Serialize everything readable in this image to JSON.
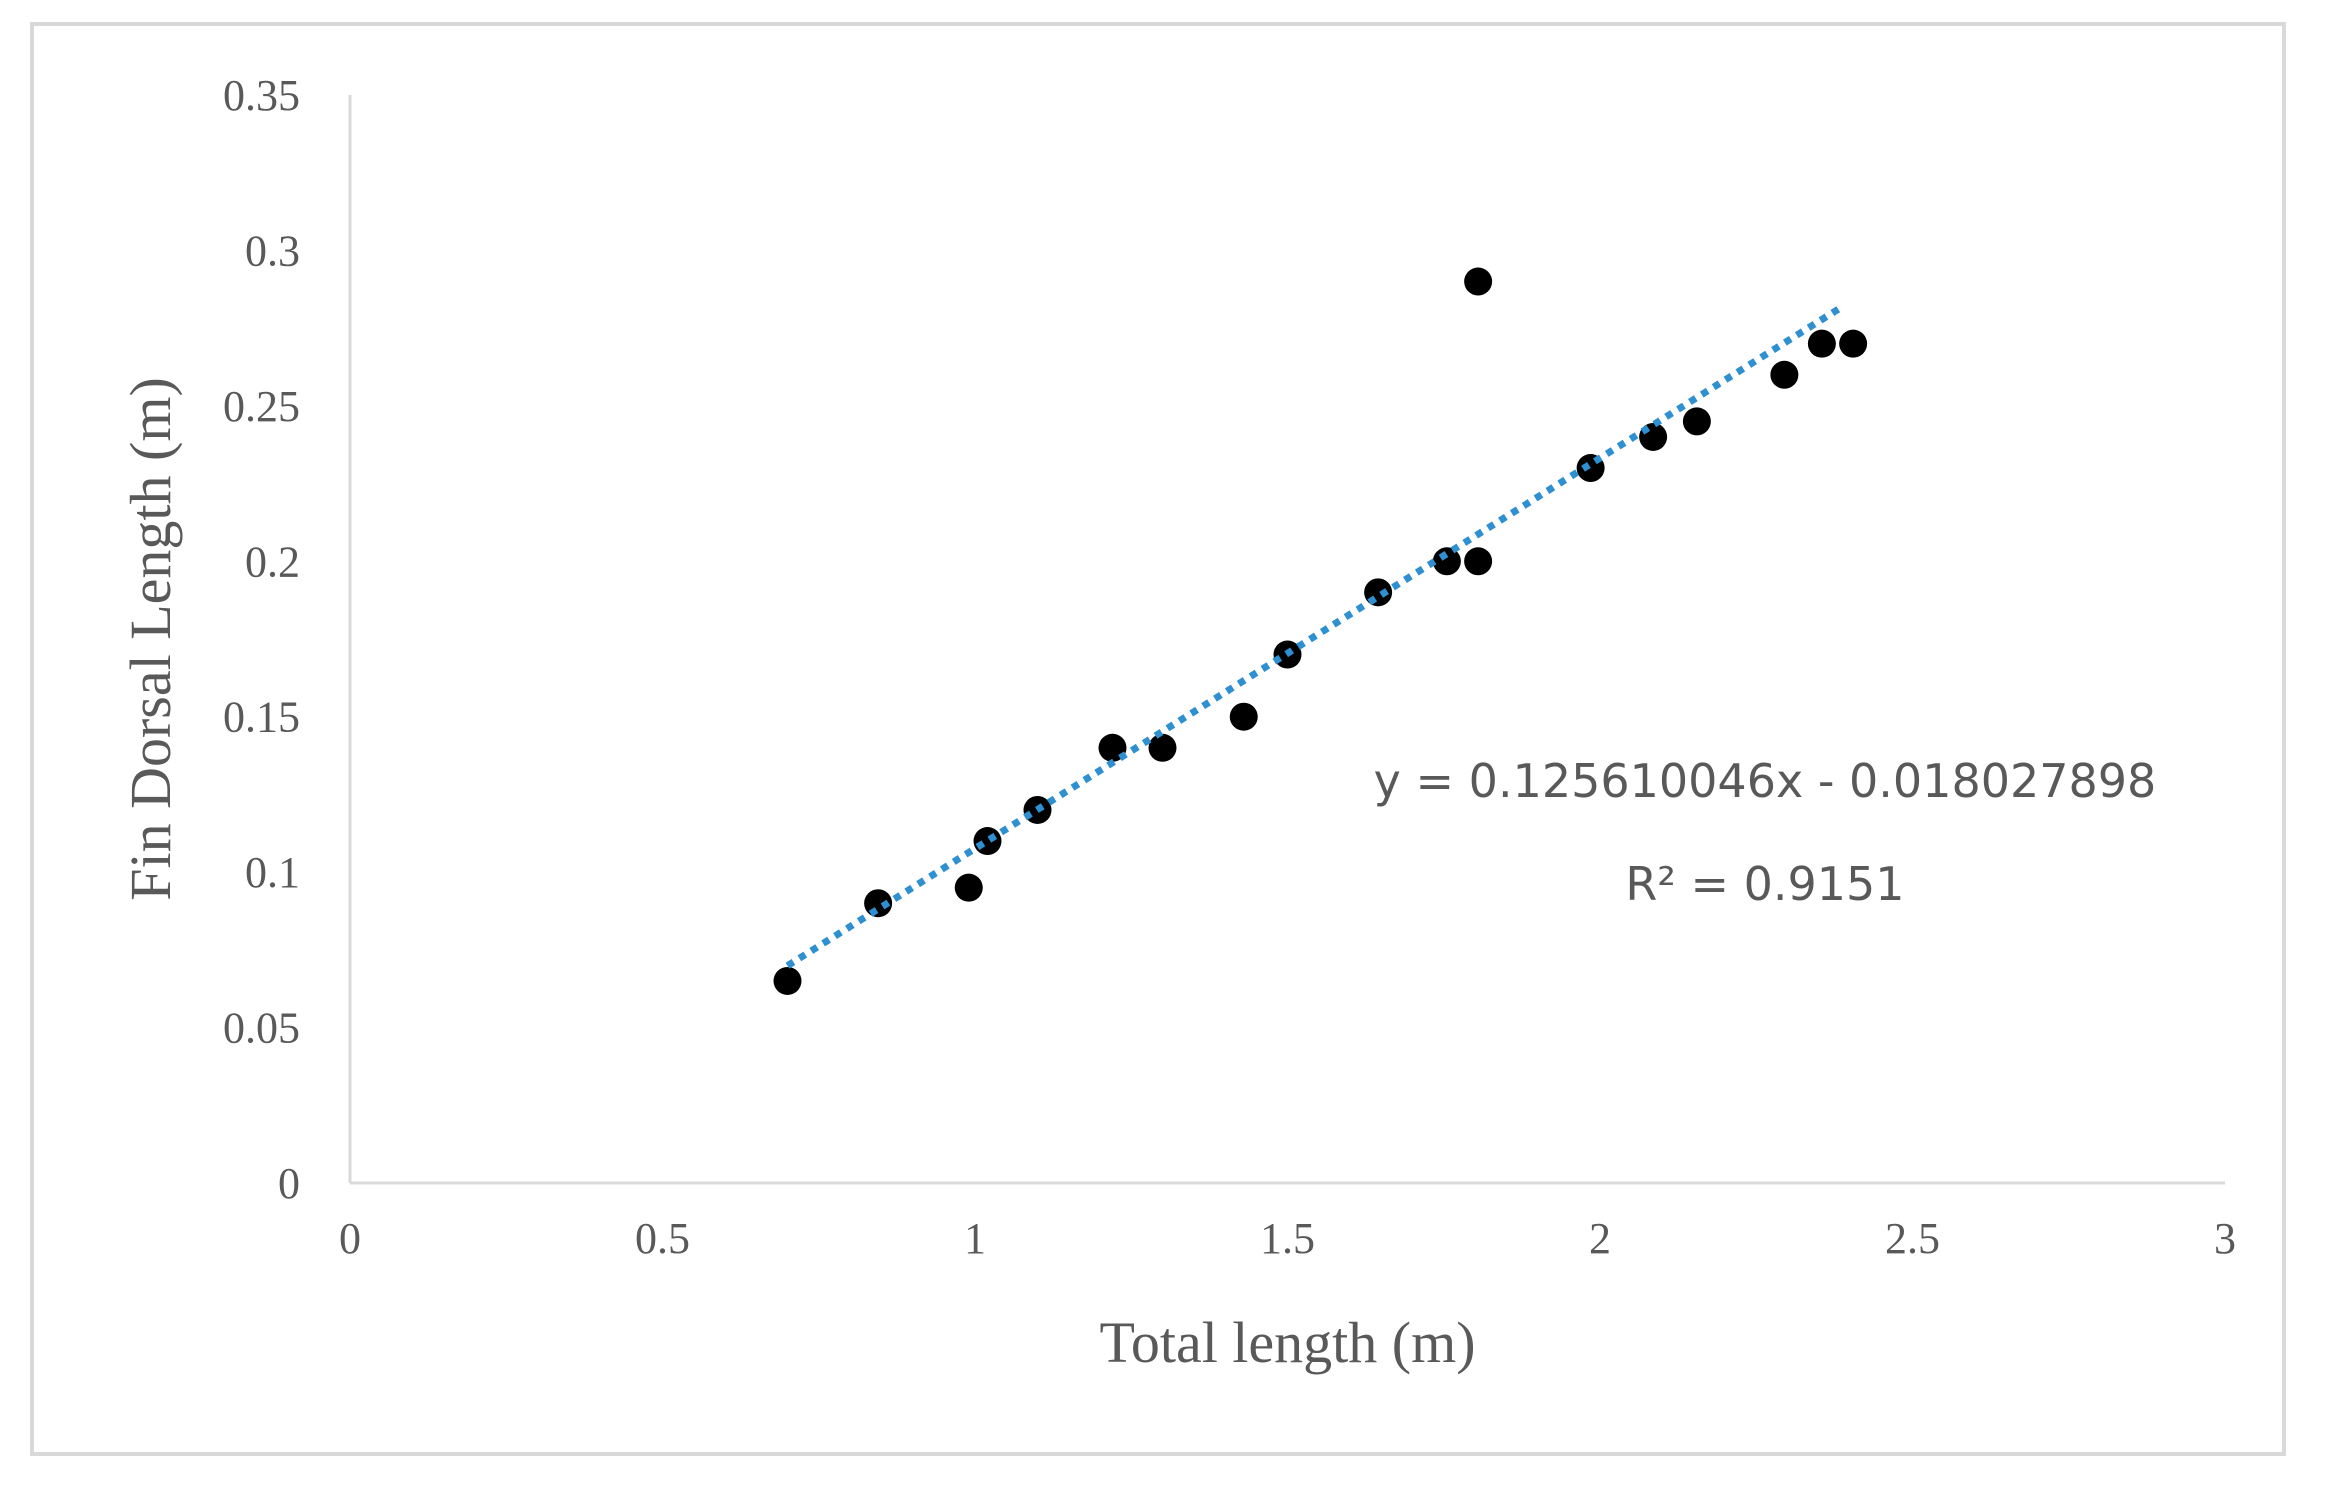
{
  "chart_data": {
    "type": "scatter",
    "title": "",
    "xlabel": "Total length (m)",
    "ylabel": "Fin Dorsal Length (m)",
    "xlim": [
      0,
      3
    ],
    "ylim": [
      0,
      0.35
    ],
    "x_ticks": [
      "0",
      "0.5",
      "1",
      "1.5",
      "2",
      "2.5",
      "3"
    ],
    "y_ticks": [
      "0",
      "0.05",
      "0.1",
      "0.15",
      "0.2",
      "0.25",
      "0.3",
      "0.35"
    ],
    "grid": false,
    "legend": "none",
    "series": [
      {
        "color": "#000000",
        "points": [
          {
            "x": 0.7,
            "y": 0.065
          },
          {
            "x": 0.845,
            "y": 0.09
          },
          {
            "x": 0.99,
            "y": 0.095
          },
          {
            "x": 1.02,
            "y": 0.11
          },
          {
            "x": 1.1,
            "y": 0.12
          },
          {
            "x": 1.22,
            "y": 0.14
          },
          {
            "x": 1.3,
            "y": 0.14
          },
          {
            "x": 1.43,
            "y": 0.15
          },
          {
            "x": 1.5,
            "y": 0.17
          },
          {
            "x": 1.645,
            "y": 0.19
          },
          {
            "x": 1.755,
            "y": 0.2
          },
          {
            "x": 1.805,
            "y": 0.2
          },
          {
            "x": 1.805,
            "y": 0.29
          },
          {
            "x": 1.985,
            "y": 0.23
          },
          {
            "x": 2.085,
            "y": 0.24
          },
          {
            "x": 2.155,
            "y": 0.245
          },
          {
            "x": 2.295,
            "y": 0.26
          },
          {
            "x": 2.355,
            "y": 0.27
          },
          {
            "x": 2.405,
            "y": 0.27
          }
        ]
      }
    ],
    "trendline": {
      "type": "linear",
      "style": "dotted",
      "color": "#2e8fd1",
      "slope": 0.125610046,
      "intercept": -0.018027898,
      "x_range": [
        0.7,
        2.39
      ],
      "equation": "y = 0.125610046x - 0.018027898",
      "r_squared": "R² = 0.9151"
    }
  }
}
